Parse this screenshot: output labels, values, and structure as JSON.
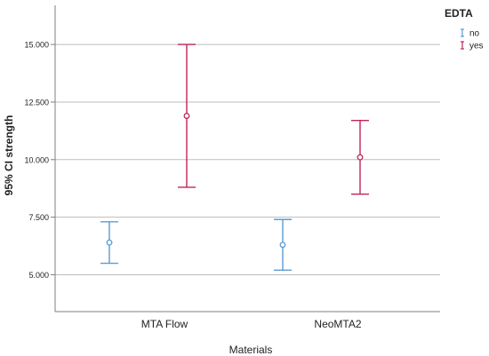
{
  "chart_data": {
    "type": "errorbar",
    "ylabel": "95% CI strength",
    "xlabel": "Materials",
    "categories": [
      "MTA Flow",
      "NeoMTA2"
    ],
    "y_ticks": [
      "5.000",
      "7.500",
      "10.000",
      "12.500",
      "15.000"
    ],
    "ylim": [
      3.4,
      16.7
    ],
    "grid": "horizontal",
    "legend": {
      "title": "EDTA",
      "placement": "top-right",
      "entries": [
        "no",
        "yes"
      ]
    },
    "series": [
      {
        "name": "no",
        "color": "#5b9bd5",
        "points": [
          {
            "category": "MTA Flow",
            "mean": 6.4,
            "lower": 5.5,
            "upper": 7.3
          },
          {
            "category": "NeoMTA2",
            "mean": 6.3,
            "lower": 5.2,
            "upper": 7.4
          }
        ]
      },
      {
        "name": "yes",
        "color": "#c0245a",
        "points": [
          {
            "category": "MTA Flow",
            "mean": 11.9,
            "lower": 8.8,
            "upper": 15.0
          },
          {
            "category": "NeoMTA2",
            "mean": 10.1,
            "lower": 8.5,
            "upper": 11.7
          }
        ]
      }
    ]
  }
}
